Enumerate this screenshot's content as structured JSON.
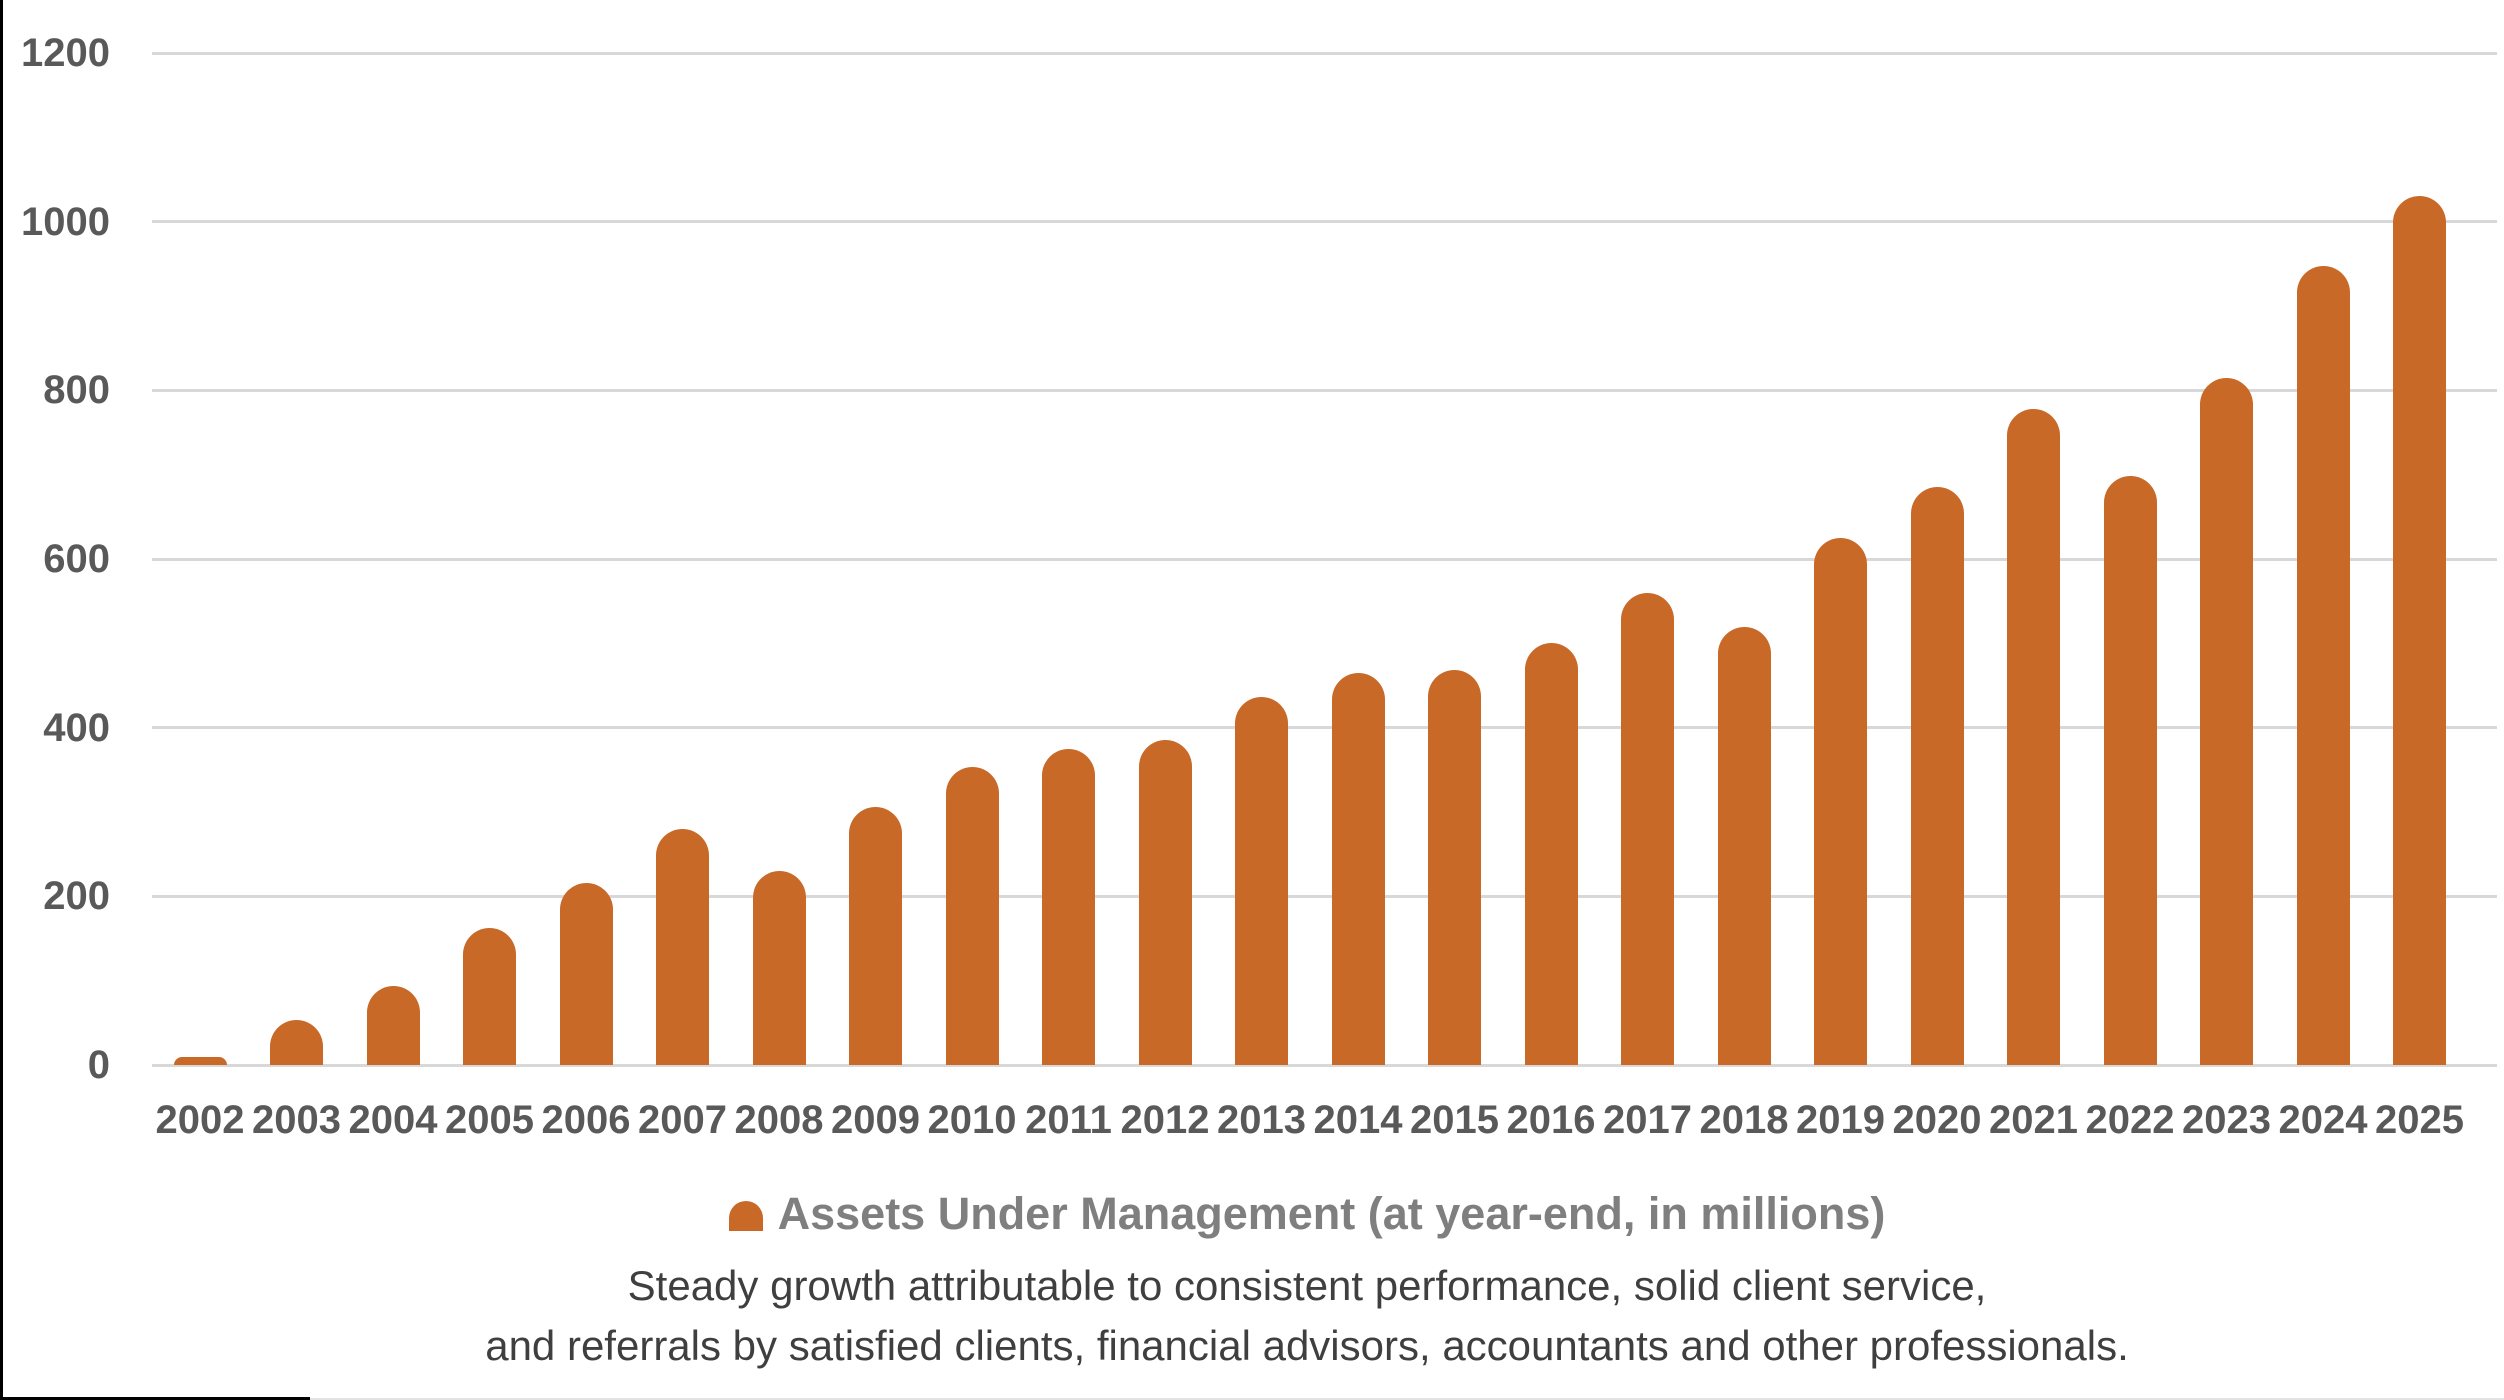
{
  "chart_data": {
    "type": "bar",
    "title": "",
    "series_name": "Assets Under Management (at year-end, in millions)",
    "legend_label": "Assets Under Management (at year-end, in millions)",
    "legend_position": "bottom",
    "categories": [
      "2002",
      "2003",
      "2004",
      "2005",
      "2006",
      "2007",
      "2008",
      "2009",
      "2010",
      "2011",
      "2012",
      "2013",
      "2014",
      "2015",
      "2016",
      "2017",
      "2018",
      "2019",
      "2020",
      "2021",
      "2022",
      "2023",
      "2024",
      "2025"
    ],
    "values": [
      10,
      53,
      94,
      162,
      216,
      280,
      230,
      306,
      353,
      375,
      386,
      437,
      465,
      469,
      500,
      560,
      520,
      625,
      686,
      778,
      698,
      815,
      948,
      1030
    ],
    "xlabel": "",
    "ylabel": "",
    "ylim": [
      0,
      1200
    ],
    "yticks": [
      0,
      200,
      400,
      600,
      800,
      1000,
      1200
    ],
    "grid": true
  },
  "caption": {
    "line1": "Steady growth attributable to consistent performance, solid client service,",
    "line2": "and referrals by satisfied clients, financial advisors, accountants and other professionals."
  },
  "colors": {
    "bar": "#C86928",
    "grid": "#D8D8D8",
    "axis_label": "#595959",
    "legend_text": "#7F7F7F",
    "caption_text": "#3F3F3F",
    "background": "#FFFFFF",
    "border_left": "#000000"
  }
}
